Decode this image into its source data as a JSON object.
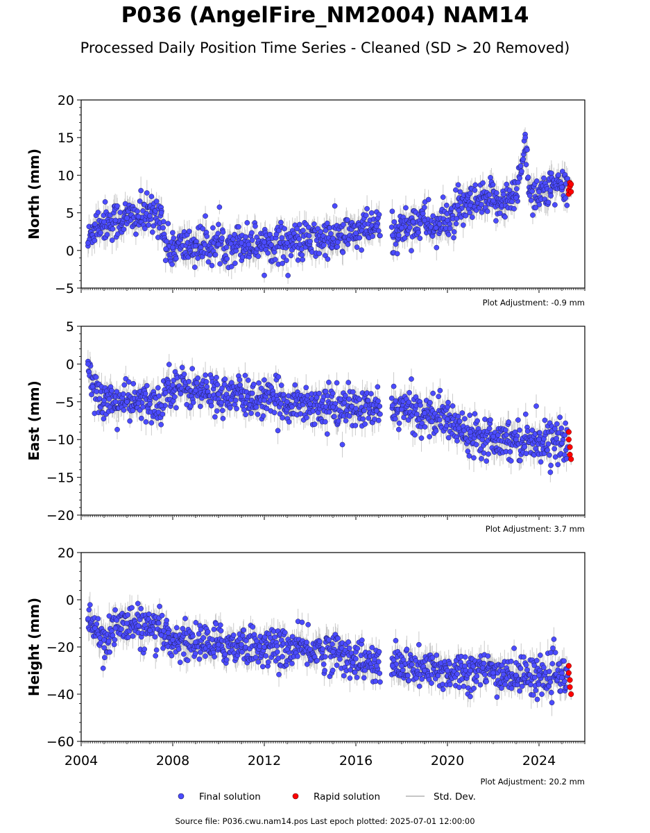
{
  "header": {
    "title": "P036 (AngelFire_NM2004) NAM14",
    "subtitle": "Processed Daily Position Time Series - Cleaned (SD > 20 Removed)"
  },
  "footer": {
    "source_text": "Source file: P036.cwu.nam14.pos  Last epoch plotted: 2025-07-01 12:00:00"
  },
  "legend": {
    "final_label": "Final solution",
    "rapid_label": "Rapid solution",
    "std_label": "Std. Dev."
  },
  "colors": {
    "final": "#4b4bff",
    "rapid": "#ff0000",
    "std": "#b4b4b4"
  },
  "chart_data": [
    {
      "type": "scatter",
      "ylabel": "North (mm)",
      "xlim": [
        2004.0,
        2026.0
      ],
      "ylim": [
        -5,
        20
      ],
      "yticks": [
        -5,
        0,
        5,
        10,
        15,
        20
      ],
      "xticks": [
        2004,
        2008,
        2012,
        2016,
        2020,
        2024
      ],
      "show_xtick_labels": false,
      "adjustment": "Plot Adjustment: -0.9 mm",
      "series": [
        {
          "name": "Final solution",
          "values": [
            [
              2004.3,
              1.0
            ],
            [
              2004.6,
              3.5
            ],
            [
              2005.0,
              3.8
            ],
            [
              2005.5,
              4.0
            ],
            [
              2006.0,
              4.3
            ],
            [
              2006.5,
              4.5
            ],
            [
              2007.0,
              4.6
            ],
            [
              2007.5,
              5.0
            ],
            [
              2007.7,
              0.2
            ],
            [
              2008.0,
              0.4
            ],
            [
              2009.0,
              0.6
            ],
            [
              2010.0,
              0.8
            ],
            [
              2011.0,
              1.0
            ],
            [
              2012.0,
              1.1
            ],
            [
              2013.0,
              1.0
            ],
            [
              2014.0,
              1.2
            ],
            [
              2015.0,
              1.6
            ],
            [
              2016.0,
              2.3
            ],
            [
              2016.9,
              3.2
            ],
            [
              2017.6,
              2.0
            ],
            [
              2018.0,
              3.0
            ],
            [
              2018.5,
              3.8
            ],
            [
              2019.0,
              4.0
            ],
            [
              2019.5,
              3.0
            ],
            [
              2020.0,
              4.0
            ],
            [
              2020.5,
              5.3
            ],
            [
              2021.0,
              6.0
            ],
            [
              2022.0,
              6.6
            ],
            [
              2023.0,
              7.0
            ],
            [
              2023.4,
              15.0
            ],
            [
              2023.6,
              7.3
            ],
            [
              2024.0,
              7.8
            ],
            [
              2024.5,
              8.0
            ],
            [
              2025.0,
              8.4
            ]
          ]
        },
        {
          "name": "Rapid solution",
          "values": [
            [
              2025.3,
              7.5
            ],
            [
              2025.3,
              8.0
            ],
            [
              2025.35,
              8.5
            ],
            [
              2025.35,
              9.0
            ],
            [
              2025.4,
              7.8
            ],
            [
              2025.4,
              8.8
            ]
          ]
        }
      ]
    },
    {
      "type": "scatter",
      "ylabel": "East (mm)",
      "xlim": [
        2004.0,
        2026.0
      ],
      "ylim": [
        -20,
        5
      ],
      "yticks": [
        -20,
        -15,
        -10,
        -5,
        0,
        5
      ],
      "xticks": [
        2004,
        2008,
        2012,
        2016,
        2020,
        2024
      ],
      "show_xtick_labels": false,
      "adjustment": "Plot Adjustment: 3.7 mm",
      "series": [
        {
          "name": "Final solution",
          "values": [
            [
              2004.3,
              0.0
            ],
            [
              2004.5,
              -3.0
            ],
            [
              2005.0,
              -4.8
            ],
            [
              2005.5,
              -5.0
            ],
            [
              2006.0,
              -5.0
            ],
            [
              2006.5,
              -5.2
            ],
            [
              2007.0,
              -5.3
            ],
            [
              2007.5,
              -5.5
            ],
            [
              2007.8,
              -2.5
            ],
            [
              2008.0,
              -2.8
            ],
            [
              2009.0,
              -3.5
            ],
            [
              2010.0,
              -4.0
            ],
            [
              2011.0,
              -4.3
            ],
            [
              2012.0,
              -4.8
            ],
            [
              2013.0,
              -5.0
            ],
            [
              2014.0,
              -5.3
            ],
            [
              2015.0,
              -5.7
            ],
            [
              2016.0,
              -5.9
            ],
            [
              2016.9,
              -6.2
            ],
            [
              2017.6,
              -5.5
            ],
            [
              2018.0,
              -6.0
            ],
            [
              2019.0,
              -6.5
            ],
            [
              2020.0,
              -7.3
            ],
            [
              2020.5,
              -8.5
            ],
            [
              2021.0,
              -9.0
            ],
            [
              2022.0,
              -9.6
            ],
            [
              2023.0,
              -10.0
            ],
            [
              2024.0,
              -10.0
            ],
            [
              2025.0,
              -10.5
            ]
          ]
        },
        {
          "name": "Rapid solution",
          "values": [
            [
              2025.3,
              -9.0
            ],
            [
              2025.3,
              -10.0
            ],
            [
              2025.35,
              -11.0
            ],
            [
              2025.35,
              -12.0
            ],
            [
              2025.4,
              -12.6
            ]
          ]
        }
      ]
    },
    {
      "type": "scatter",
      "ylabel": "Height (mm)",
      "xlim": [
        2004.0,
        2026.0
      ],
      "ylim": [
        -60,
        20
      ],
      "yticks": [
        -60,
        -40,
        -20,
        0,
        20
      ],
      "xticks": [
        2004,
        2008,
        2012,
        2016,
        2020,
        2024
      ],
      "show_xtick_labels": true,
      "adjustment": "Plot Adjustment: 20.2 mm",
      "series": [
        {
          "name": "Final solution",
          "values": [
            [
              2004.3,
              -8.0
            ],
            [
              2004.6,
              -12.0
            ],
            [
              2005.0,
              -17.0
            ],
            [
              2005.5,
              -12.0
            ],
            [
              2006.0,
              -10.0
            ],
            [
              2006.5,
              -11.0
            ],
            [
              2007.0,
              -13.0
            ],
            [
              2007.5,
              -15.0
            ],
            [
              2007.8,
              -14.0
            ],
            [
              2008.0,
              -17.0
            ],
            [
              2009.0,
              -18.0
            ],
            [
              2010.0,
              -19.0
            ],
            [
              2011.0,
              -19.0
            ],
            [
              2012.0,
              -20.0
            ],
            [
              2013.0,
              -21.0
            ],
            [
              2014.0,
              -21.0
            ],
            [
              2015.0,
              -22.0
            ],
            [
              2016.0,
              -25.0
            ],
            [
              2016.9,
              -28.0
            ],
            [
              2017.6,
              -28.0
            ],
            [
              2018.0,
              -28.0
            ],
            [
              2019.0,
              -30.0
            ],
            [
              2020.0,
              -30.0
            ],
            [
              2021.0,
              -30.0
            ],
            [
              2022.0,
              -31.0
            ],
            [
              2023.0,
              -32.0
            ],
            [
              2024.0,
              -32.0
            ],
            [
              2025.0,
              -33.0
            ]
          ]
        },
        {
          "name": "Rapid solution",
          "values": [
            [
              2025.3,
              -28.0
            ],
            [
              2025.3,
              -31.0
            ],
            [
              2025.35,
              -34.0
            ],
            [
              2025.35,
              -37.0
            ],
            [
              2025.4,
              -40.0
            ]
          ]
        }
      ]
    }
  ]
}
